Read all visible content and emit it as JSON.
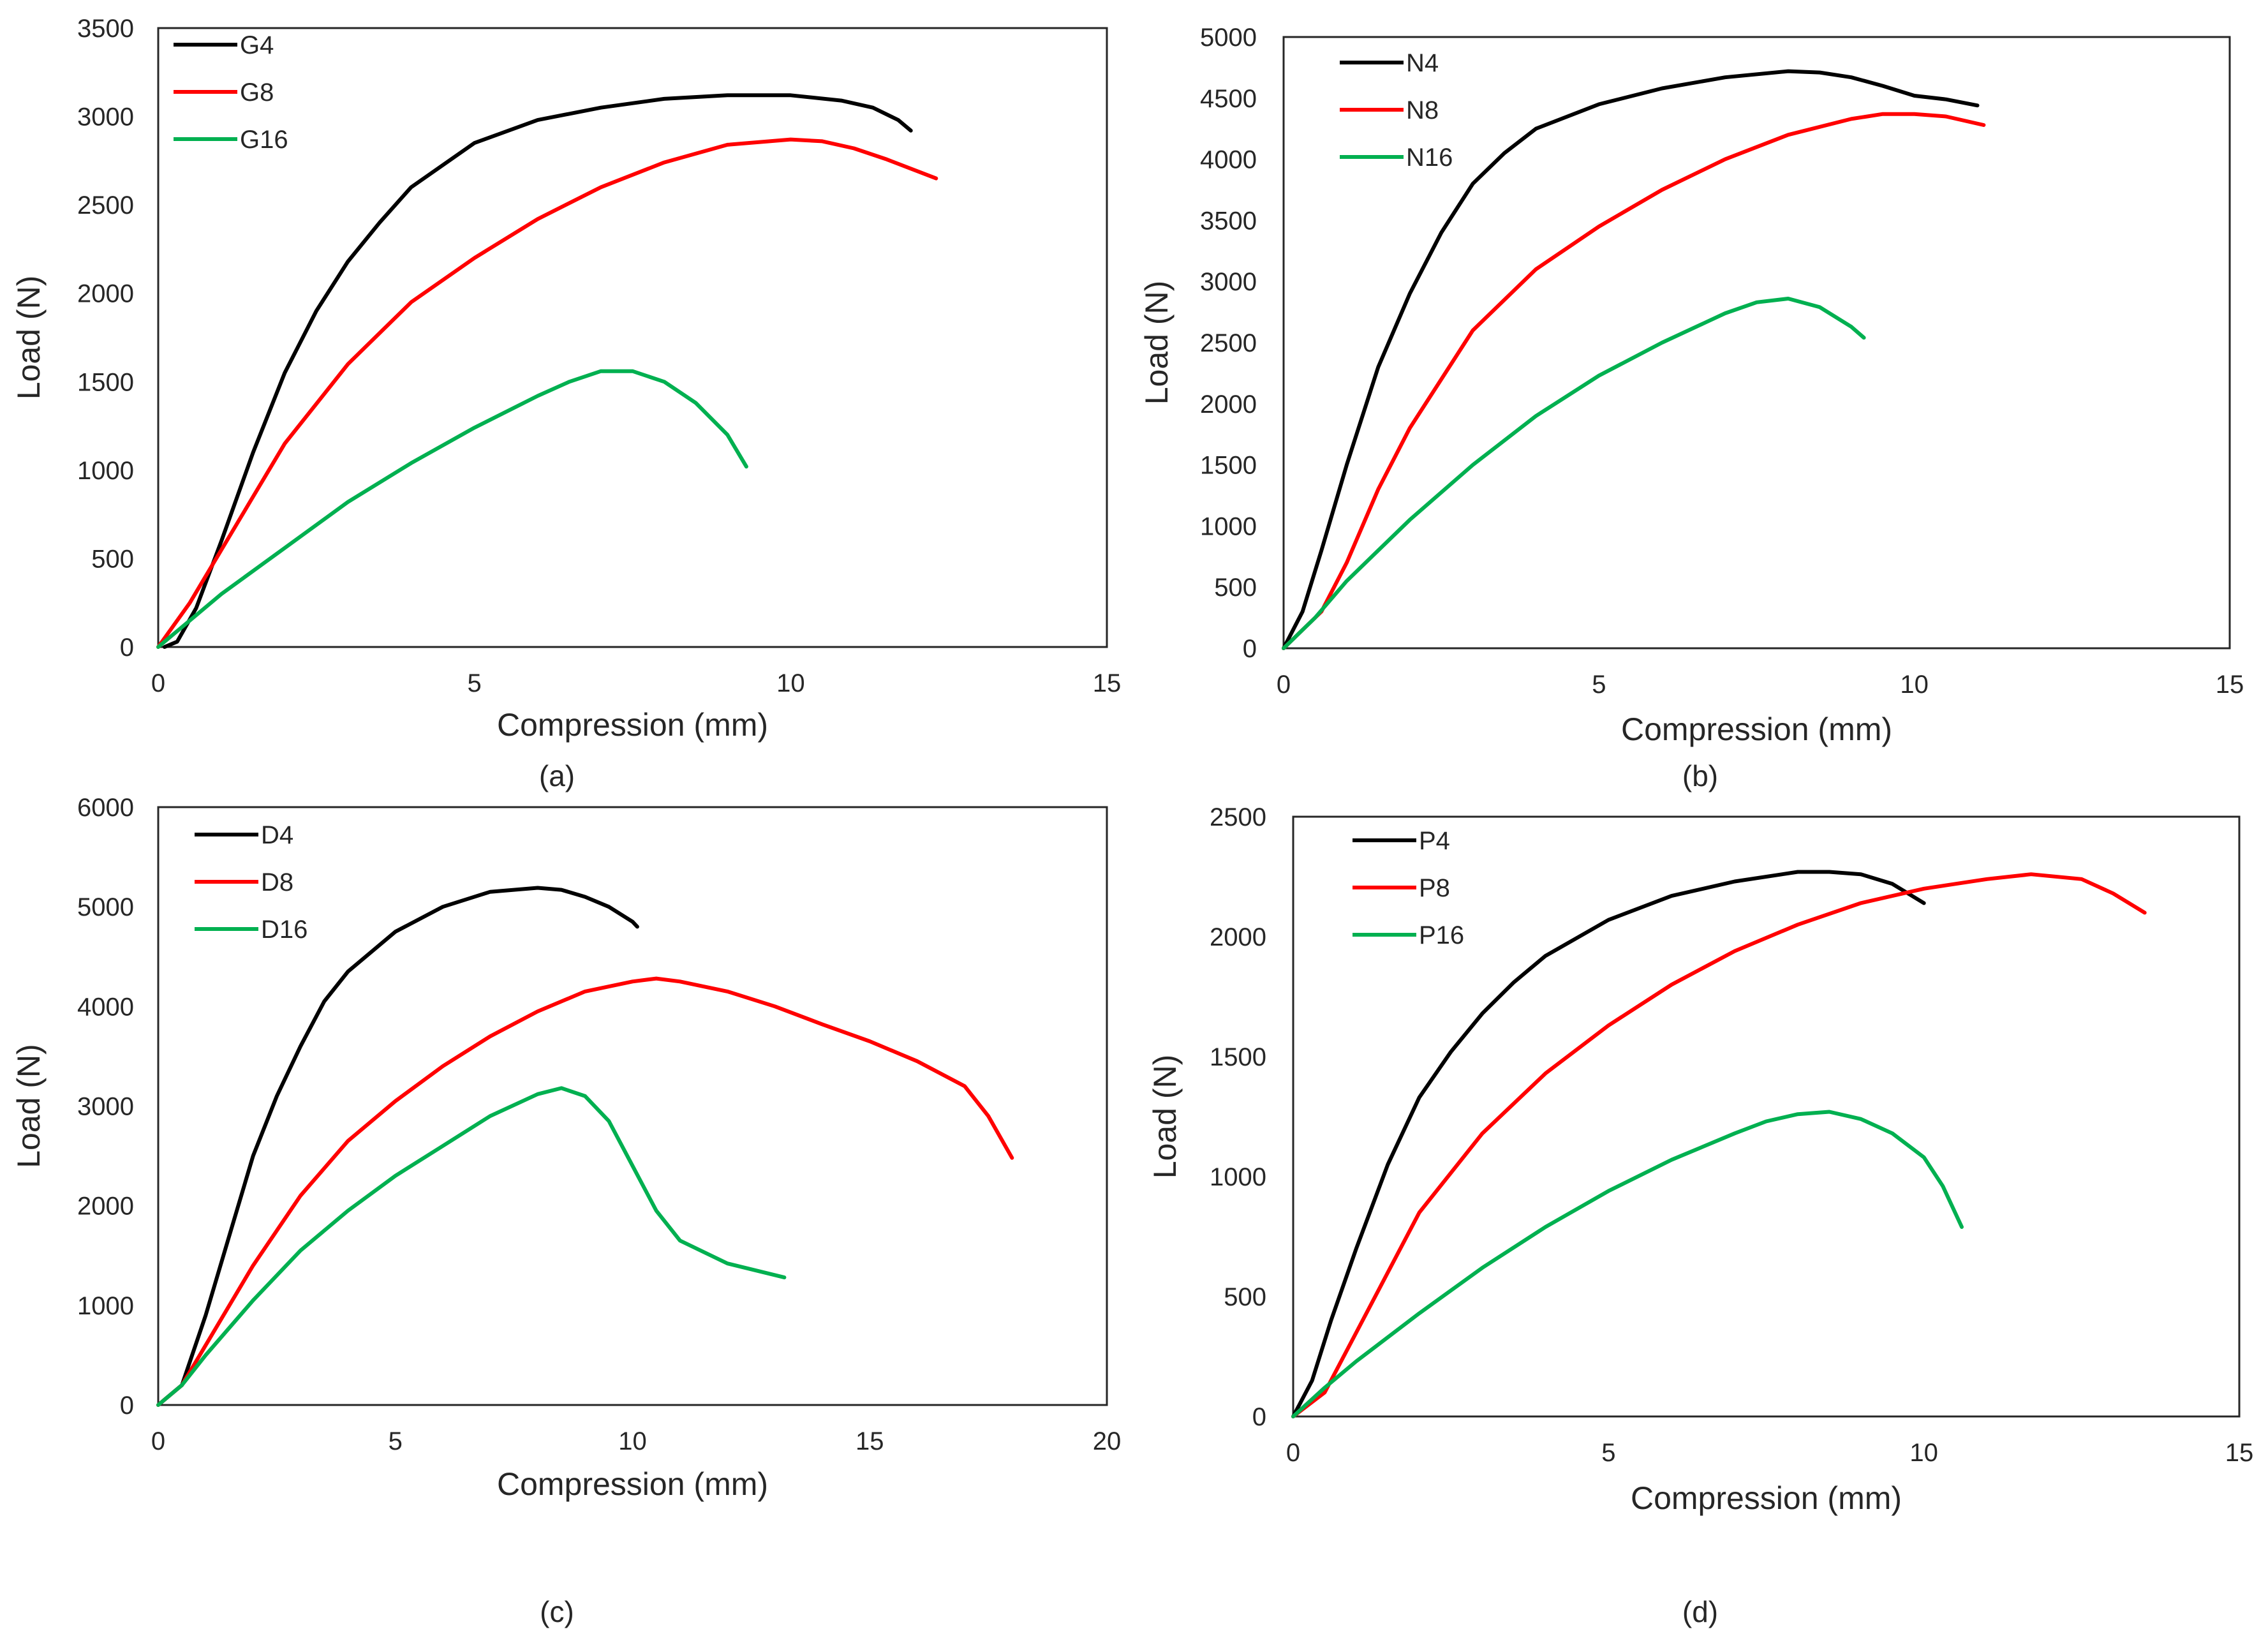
{
  "chart_data": [
    {
      "type": "line",
      "panel_label": "(a)",
      "xlabel": "Compression (mm)",
      "ylabel": "Load (N)",
      "xlim": [
        0,
        15
      ],
      "ylim": [
        0,
        3500
      ],
      "xticks": [
        0,
        5,
        10,
        15
      ],
      "yticks": [
        0,
        500,
        1000,
        1500,
        2000,
        2500,
        3000,
        3500
      ],
      "grid": false,
      "legend_position": "top-left",
      "series": [
        {
          "name": "G4",
          "color": "#000000",
          "points": [
            [
              0.1,
              0
            ],
            [
              0.3,
              30
            ],
            [
              0.6,
              220
            ],
            [
              1.0,
              600
            ],
            [
              1.5,
              1100
            ],
            [
              2.0,
              1550
            ],
            [
              2.5,
              1900
            ],
            [
              3.0,
              2180
            ],
            [
              3.5,
              2400
            ],
            [
              4.0,
              2600
            ],
            [
              5.0,
              2850
            ],
            [
              6.0,
              2980
            ],
            [
              7.0,
              3050
            ],
            [
              8.0,
              3100
            ],
            [
              9.0,
              3120
            ],
            [
              10.0,
              3120
            ],
            [
              10.8,
              3090
            ],
            [
              11.3,
              3050
            ],
            [
              11.7,
              2980
            ],
            [
              11.9,
              2920
            ]
          ]
        },
        {
          "name": "G8",
          "color": "#ff0000",
          "points": [
            [
              0,
              0
            ],
            [
              0.5,
              250
            ],
            [
              1.0,
              550
            ],
            [
              1.5,
              850
            ],
            [
              2.0,
              1150
            ],
            [
              3.0,
              1600
            ],
            [
              4.0,
              1950
            ],
            [
              5.0,
              2200
            ],
            [
              6.0,
              2420
            ],
            [
              7.0,
              2600
            ],
            [
              8.0,
              2740
            ],
            [
              9.0,
              2840
            ],
            [
              10.0,
              2870
            ],
            [
              10.5,
              2860
            ],
            [
              11.0,
              2820
            ],
            [
              11.5,
              2760
            ],
            [
              12.3,
              2650
            ]
          ]
        },
        {
          "name": "G16",
          "color": "#00b050",
          "points": [
            [
              0,
              0
            ],
            [
              0.5,
              150
            ],
            [
              1.0,
              300
            ],
            [
              2.0,
              560
            ],
            [
              3.0,
              820
            ],
            [
              4.0,
              1040
            ],
            [
              5.0,
              1240
            ],
            [
              6.0,
              1420
            ],
            [
              6.5,
              1500
            ],
            [
              7.0,
              1560
            ],
            [
              7.5,
              1560
            ],
            [
              8.0,
              1500
            ],
            [
              8.5,
              1380
            ],
            [
              9.0,
              1200
            ],
            [
              9.3,
              1020
            ]
          ]
        }
      ]
    },
    {
      "type": "line",
      "panel_label": "(b)",
      "xlabel": "Compression (mm)",
      "ylabel": "Load (N)",
      "xlim": [
        0,
        15
      ],
      "ylim": [
        0,
        5000
      ],
      "xticks": [
        0,
        5,
        10,
        15
      ],
      "yticks": [
        0,
        500,
        1000,
        1500,
        2000,
        2500,
        3000,
        3500,
        4000,
        4500,
        5000
      ],
      "grid": false,
      "legend_position": "top-left",
      "series": [
        {
          "name": "N4",
          "color": "#000000",
          "points": [
            [
              0,
              0
            ],
            [
              0.3,
              300
            ],
            [
              0.6,
              800
            ],
            [
              1.0,
              1500
            ],
            [
              1.5,
              2300
            ],
            [
              2.0,
              2900
            ],
            [
              2.5,
              3400
            ],
            [
              3.0,
              3800
            ],
            [
              3.5,
              4050
            ],
            [
              4.0,
              4250
            ],
            [
              5.0,
              4450
            ],
            [
              6.0,
              4580
            ],
            [
              7.0,
              4670
            ],
            [
              8.0,
              4720
            ],
            [
              8.5,
              4710
            ],
            [
              9.0,
              4670
            ],
            [
              9.5,
              4600
            ],
            [
              10.0,
              4520
            ],
            [
              10.5,
              4490
            ],
            [
              11.0,
              4440
            ]
          ]
        },
        {
          "name": "N8",
          "color": "#ff0000",
          "points": [
            [
              0,
              0
            ],
            [
              0.6,
              300
            ],
            [
              1.0,
              700
            ],
            [
              1.5,
              1300
            ],
            [
              2.0,
              1800
            ],
            [
              3.0,
              2600
            ],
            [
              4.0,
              3100
            ],
            [
              5.0,
              3450
            ],
            [
              6.0,
              3750
            ],
            [
              7.0,
              4000
            ],
            [
              8.0,
              4200
            ],
            [
              9.0,
              4330
            ],
            [
              9.5,
              4370
            ],
            [
              10.0,
              4370
            ],
            [
              10.5,
              4350
            ],
            [
              11.1,
              4280
            ]
          ]
        },
        {
          "name": "N16",
          "color": "#00b050",
          "points": [
            [
              0,
              0
            ],
            [
              0.5,
              250
            ],
            [
              1.0,
              550
            ],
            [
              2.0,
              1050
            ],
            [
              3.0,
              1500
            ],
            [
              4.0,
              1900
            ],
            [
              5.0,
              2230
            ],
            [
              6.0,
              2500
            ],
            [
              7.0,
              2740
            ],
            [
              7.5,
              2830
            ],
            [
              8.0,
              2860
            ],
            [
              8.5,
              2790
            ],
            [
              9.0,
              2630
            ],
            [
              9.2,
              2540
            ]
          ]
        }
      ]
    },
    {
      "type": "line",
      "panel_label": "(c)",
      "xlabel": "Compression (mm)",
      "ylabel": "Load (N)",
      "xlim": [
        0,
        20
      ],
      "ylim": [
        0,
        6000
      ],
      "xticks": [
        0,
        5,
        10,
        15,
        20
      ],
      "yticks": [
        0,
        1000,
        2000,
        3000,
        4000,
        5000,
        6000
      ],
      "grid": false,
      "legend_position": "top-left",
      "series": [
        {
          "name": "D4",
          "color": "#000000",
          "points": [
            [
              0,
              0
            ],
            [
              0.5,
              200
            ],
            [
              1.0,
              900
            ],
            [
              1.5,
              1700
            ],
            [
              2.0,
              2500
            ],
            [
              2.5,
              3100
            ],
            [
              3.0,
              3600
            ],
            [
              3.5,
              4050
            ],
            [
              4.0,
              4350
            ],
            [
              5.0,
              4750
            ],
            [
              6.0,
              5000
            ],
            [
              7.0,
              5150
            ],
            [
              8.0,
              5190
            ],
            [
              8.5,
              5170
            ],
            [
              9.0,
              5100
            ],
            [
              9.5,
              5000
            ],
            [
              10.0,
              4850
            ],
            [
              10.1,
              4800
            ]
          ]
        },
        {
          "name": "D8",
          "color": "#ff0000",
          "points": [
            [
              0,
              0
            ],
            [
              0.5,
              200
            ],
            [
              1.0,
              600
            ],
            [
              2.0,
              1400
            ],
            [
              3.0,
              2100
            ],
            [
              4.0,
              2650
            ],
            [
              5.0,
              3050
            ],
            [
              6.0,
              3400
            ],
            [
              7.0,
              3700
            ],
            [
              8.0,
              3950
            ],
            [
              9.0,
              4150
            ],
            [
              10.0,
              4250
            ],
            [
              10.5,
              4280
            ],
            [
              11.0,
              4250
            ],
            [
              12.0,
              4150
            ],
            [
              13.0,
              4000
            ],
            [
              14.0,
              3820
            ],
            [
              15.0,
              3650
            ],
            [
              16.0,
              3450
            ],
            [
              17.0,
              3200
            ],
            [
              17.5,
              2900
            ],
            [
              18.0,
              2480
            ]
          ]
        },
        {
          "name": "D16",
          "color": "#00b050",
          "points": [
            [
              0,
              0
            ],
            [
              0.5,
              200
            ],
            [
              1.0,
              500
            ],
            [
              2.0,
              1050
            ],
            [
              3.0,
              1550
            ],
            [
              4.0,
              1950
            ],
            [
              5.0,
              2300
            ],
            [
              6.0,
              2600
            ],
            [
              7.0,
              2900
            ],
            [
              8.0,
              3120
            ],
            [
              8.5,
              3180
            ],
            [
              9.0,
              3100
            ],
            [
              9.5,
              2850
            ],
            [
              10.0,
              2400
            ],
            [
              10.5,
              1950
            ],
            [
              11.0,
              1650
            ],
            [
              12.0,
              1420
            ],
            [
              13.2,
              1280
            ]
          ]
        }
      ]
    },
    {
      "type": "line",
      "panel_label": "(d)",
      "xlabel": "Compression (mm)",
      "ylabel": "Load (N)",
      "xlim": [
        0,
        15
      ],
      "ylim": [
        0,
        2500
      ],
      "xticks": [
        0,
        5,
        10,
        15
      ],
      "yticks": [
        0,
        500,
        1000,
        1500,
        2000,
        2500
      ],
      "grid": false,
      "legend_position": "top-left",
      "series": [
        {
          "name": "P4",
          "color": "#000000",
          "points": [
            [
              0,
              0
            ],
            [
              0.3,
              150
            ],
            [
              0.6,
              400
            ],
            [
              1.0,
              700
            ],
            [
              1.5,
              1050
            ],
            [
              2.0,
              1330
            ],
            [
              2.5,
              1520
            ],
            [
              3.0,
              1680
            ],
            [
              3.5,
              1810
            ],
            [
              4.0,
              1920
            ],
            [
              5.0,
              2070
            ],
            [
              6.0,
              2170
            ],
            [
              7.0,
              2230
            ],
            [
              8.0,
              2270
            ],
            [
              8.5,
              2270
            ],
            [
              9.0,
              2260
            ],
            [
              9.5,
              2220
            ],
            [
              10.0,
              2140
            ]
          ]
        },
        {
          "name": "P8",
          "color": "#ff0000",
          "points": [
            [
              0,
              0
            ],
            [
              0.5,
              100
            ],
            [
              1.0,
              350
            ],
            [
              1.5,
              600
            ],
            [
              2.0,
              850
            ],
            [
              3.0,
              1180
            ],
            [
              4.0,
              1430
            ],
            [
              5.0,
              1630
            ],
            [
              6.0,
              1800
            ],
            [
              7.0,
              1940
            ],
            [
              8.0,
              2050
            ],
            [
              9.0,
              2140
            ],
            [
              10.0,
              2200
            ],
            [
              11.0,
              2240
            ],
            [
              11.7,
              2260
            ],
            [
              12.5,
              2240
            ],
            [
              13.0,
              2180
            ],
            [
              13.5,
              2100
            ]
          ]
        },
        {
          "name": "P16",
          "color": "#00b050",
          "points": [
            [
              0,
              0
            ],
            [
              0.5,
              120
            ],
            [
              1.0,
              230
            ],
            [
              2.0,
              430
            ],
            [
              3.0,
              620
            ],
            [
              4.0,
              790
            ],
            [
              5.0,
              940
            ],
            [
              6.0,
              1070
            ],
            [
              7.0,
              1180
            ],
            [
              7.5,
              1230
            ],
            [
              8.0,
              1260
            ],
            [
              8.5,
              1270
            ],
            [
              9.0,
              1240
            ],
            [
              9.5,
              1180
            ],
            [
              10.0,
              1080
            ],
            [
              10.3,
              960
            ],
            [
              10.6,
              790
            ]
          ]
        }
      ]
    }
  ]
}
